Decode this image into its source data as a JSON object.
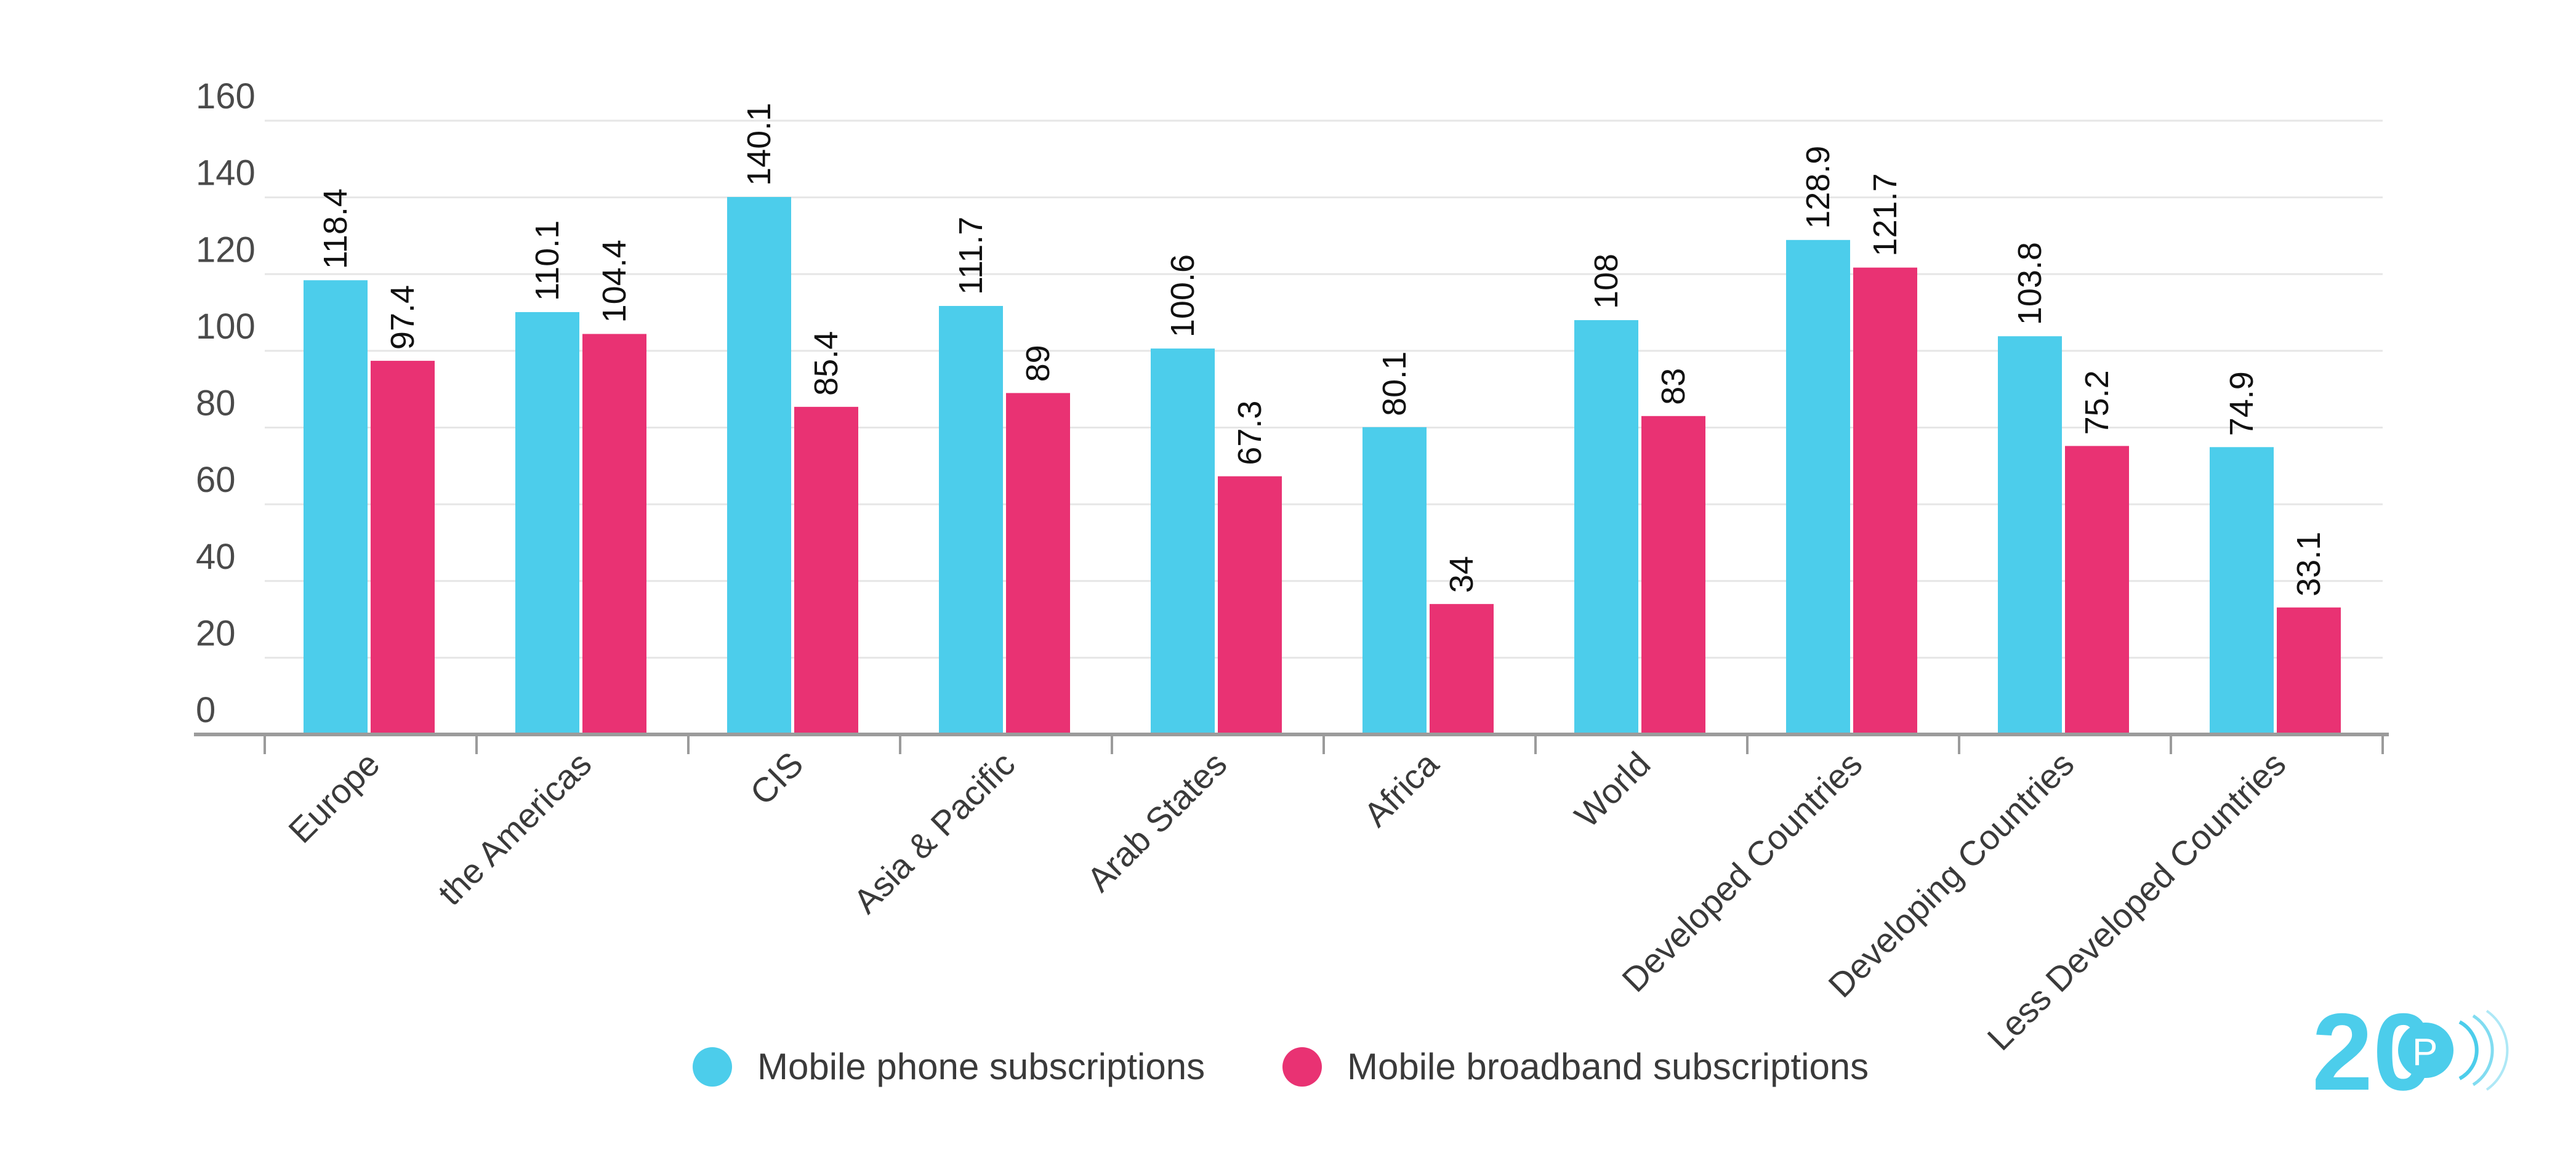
{
  "chart_data": {
    "type": "bar",
    "categories": [
      "Europe",
      "the Americas",
      "CIS",
      "Asia & Pacific",
      "Arab States",
      "Africa",
      "World",
      "Developed Countries",
      "Developing Countries",
      "Less Developed Countries"
    ],
    "series": [
      {
        "name": "Mobile phone subscriptions",
        "color": "#4ccdeb",
        "values": [
          118.4,
          110.1,
          140.1,
          111.7,
          100.6,
          80.1,
          108,
          128.9,
          103.8,
          74.9
        ]
      },
      {
        "name": "Mobile broadband subscriptions",
        "color": "#e93273",
        "values": [
          97.4,
          104.4,
          85.4,
          89,
          67.3,
          34,
          83,
          121.7,
          75.2,
          33.1
        ]
      }
    ],
    "yticks": [
      0,
      20,
      40,
      60,
      80,
      100,
      120,
      140,
      160
    ],
    "ylim": [
      0,
      160
    ],
    "grid": true,
    "legend_position": "bottom-center",
    "title": "",
    "xlabel": "",
    "ylabel": ""
  },
  "logo": {
    "text": "20",
    "color": "#4ccdeb"
  }
}
